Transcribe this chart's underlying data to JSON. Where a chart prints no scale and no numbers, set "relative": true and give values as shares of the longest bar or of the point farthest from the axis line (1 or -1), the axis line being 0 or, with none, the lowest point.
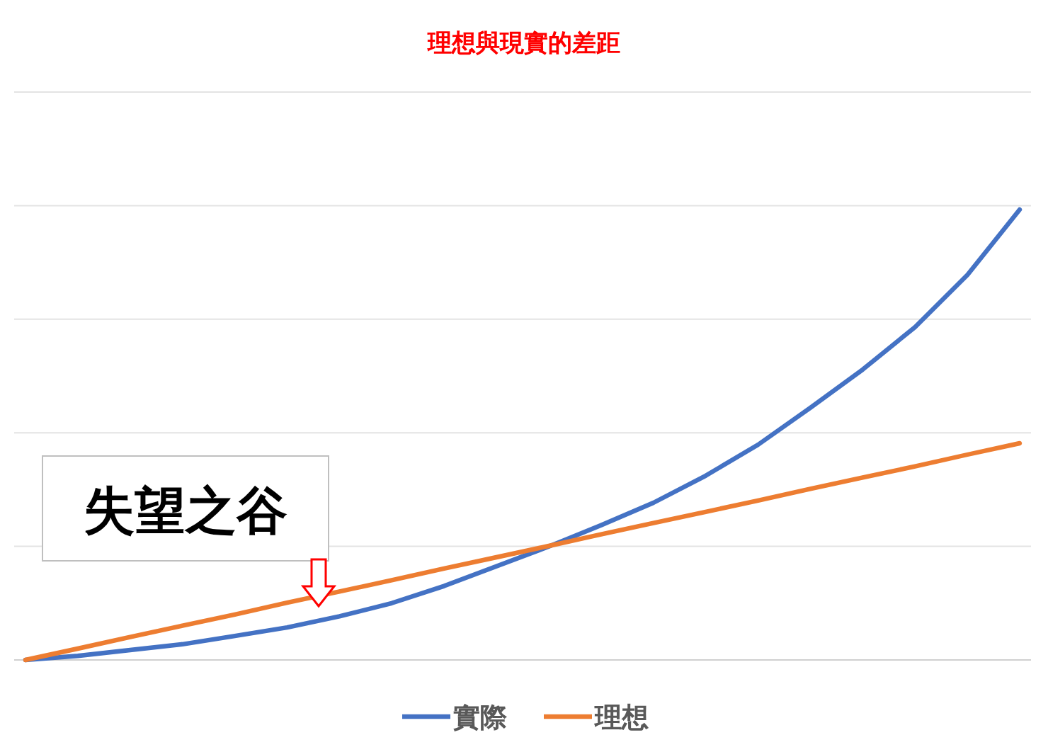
{
  "chart_data": {
    "type": "line",
    "title": "理想與現實的差距",
    "relative": true,
    "grid": "y",
    "legend": "bottom",
    "line_style": "solid",
    "categories": [
      null,
      null,
      null,
      null,
      null,
      null,
      null,
      null,
      null,
      null,
      null,
      null,
      null,
      null,
      null,
      null,
      null,
      null,
      null,
      null
    ],
    "series": [
      {
        "name": "實際",
        "color": "#4472c4",
        "values": [
          0,
          0.009,
          0.022,
          0.035,
          0.053,
          0.072,
          0.097,
          0.126,
          0.164,
          0.208,
          0.252,
          0.299,
          0.349,
          0.409,
          0.478,
          0.56,
          0.645,
          0.739,
          0.855,
          1
        ]
      },
      {
        "name": "理想",
        "color": "#ed7d31",
        "values": [
          0,
          0.025,
          0.051,
          0.076,
          0.101,
          0.127,
          0.152,
          0.177,
          0.203,
          0.228,
          0.253,
          0.279,
          0.304,
          0.329,
          0.354,
          0.38,
          0.405,
          0.43,
          0.456,
          0.481
        ]
      }
    ],
    "annotations": [
      "失望之谷"
    ]
  }
}
